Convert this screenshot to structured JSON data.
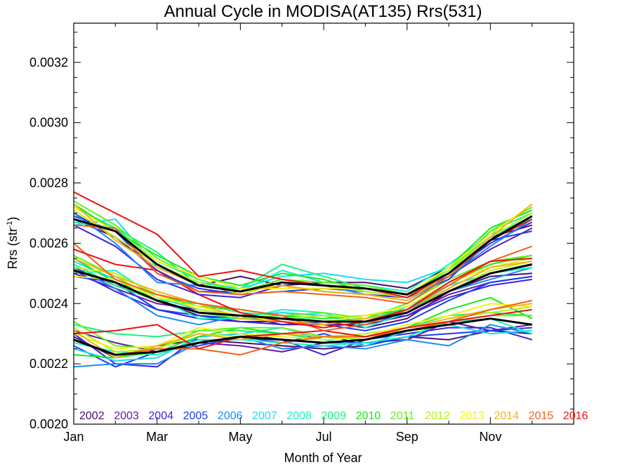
{
  "chart_data": {
    "type": "line",
    "title": "Annual Cycle in MODISA(AT135) Rrs(531)",
    "xlabel": "Month of Year",
    "ylabel_main": "Rrs (str",
    "ylabel_sup": "-1",
    "ylabel_close": ")",
    "xlim": [
      1,
      13
    ],
    "ylim": [
      0.002,
      0.00333
    ],
    "x_ticks": [
      1,
      3,
      5,
      7,
      9,
      11
    ],
    "x_tick_labels": [
      "Jan",
      "Mar",
      "May",
      "Jul",
      "Sep",
      "Nov"
    ],
    "y_ticks": [
      0.002,
      0.0022,
      0.0024,
      0.0026,
      0.0028,
      0.003,
      0.0032
    ],
    "y_tick_labels": [
      "0.0020",
      "0.0022",
      "0.0024",
      "0.0026",
      "0.0028",
      "0.0030",
      "0.0032"
    ],
    "x": [
      1,
      2,
      3,
      4,
      5,
      6,
      7,
      8,
      9,
      10,
      11,
      12
    ],
    "years": [
      "2002",
      "2003",
      "2004",
      "2005",
      "2006",
      "2007",
      "2008",
      "2009",
      "2010",
      "2011",
      "2012",
      "2013",
      "2014",
      "2015",
      "2016"
    ],
    "year_colors": [
      "#4a0f6e",
      "#6a16a8",
      "#3a22e0",
      "#1a3df2",
      "#1a8cf2",
      "#1adcf2",
      "#1af2c4",
      "#1af27a",
      "#1ae81a",
      "#62f21a",
      "#b4f21a",
      "#f2f21a",
      "#f2b41a",
      "#f2621a",
      "#ee1111"
    ],
    "series": [
      {
        "color": "#4a0f6e",
        "values": [
          0.00229,
          0.00222,
          0.00226,
          0.00228,
          0.00227,
          0.00226,
          0.00225,
          0.00226,
          0.00229,
          0.00228,
          0.00231,
          0.0023
        ]
      },
      {
        "color": "#6a16a8",
        "values": [
          0.00231,
          0.00227,
          0.00224,
          0.00227,
          0.00226,
          0.00224,
          0.00227,
          0.00227,
          0.00228,
          0.00234,
          0.00231,
          0.00233
        ]
      },
      {
        "color": "#3a22e0",
        "values": [
          0.0023,
          0.0022,
          0.00219,
          0.00229,
          0.0023,
          0.00228,
          0.00223,
          0.00228,
          0.0023,
          0.00232,
          0.00232,
          0.00228
        ]
      },
      {
        "color": "#1a3df2",
        "values": [
          0.00226,
          0.00219,
          0.00224,
          0.00226,
          0.00229,
          0.00227,
          0.0023,
          0.00226,
          0.00229,
          0.0023,
          0.00231,
          0.00232
        ]
      },
      {
        "color": "#1a8cf2",
        "values": [
          0.00219,
          0.0022,
          0.0022,
          0.00227,
          0.00229,
          0.00225,
          0.00226,
          0.00225,
          0.00228,
          0.00226,
          0.00233,
          0.0023
        ]
      },
      {
        "color": "#1adcf2",
        "values": [
          0.00225,
          0.00221,
          0.00222,
          0.00229,
          0.0023,
          0.00232,
          0.00228,
          0.00226,
          0.00231,
          0.00233,
          0.0023,
          0.00231
        ]
      },
      {
        "color": "#1af2c4",
        "values": [
          0.00227,
          0.00224,
          0.00223,
          0.00228,
          0.00228,
          0.00227,
          0.00226,
          0.00227,
          0.00229,
          0.00234,
          0.00235,
          0.0023
        ]
      },
      {
        "color": "#1af27a",
        "values": [
          0.00233,
          0.0023,
          0.00229,
          0.00231,
          0.00231,
          0.0023,
          0.00228,
          0.00229,
          0.00232,
          0.00236,
          0.00237,
          0.00236
        ]
      },
      {
        "color": "#1ae81a",
        "values": [
          0.00223,
          0.00222,
          0.00224,
          0.00229,
          0.00232,
          0.0023,
          0.00229,
          0.00229,
          0.00232,
          0.00238,
          0.00242,
          0.00235
        ]
      },
      {
        "color": "#62f21a",
        "values": [
          0.00234,
          0.00226,
          0.00225,
          0.00231,
          0.00232,
          0.00232,
          0.00229,
          0.00228,
          0.00232,
          0.00234,
          0.00236,
          0.00236
        ]
      },
      {
        "color": "#b4f21a",
        "values": [
          0.00232,
          0.00224,
          0.00225,
          0.0023,
          0.00229,
          0.0023,
          0.00229,
          0.0023,
          0.00232,
          0.00235,
          0.00237,
          0.00239
        ]
      },
      {
        "color": "#f2f21a",
        "values": [
          0.0023,
          0.00225,
          0.00226,
          0.00232,
          0.0023,
          0.00229,
          0.00228,
          0.00229,
          0.00233,
          0.00236,
          0.0024,
          0.00239
        ]
      },
      {
        "color": "#f2b41a",
        "values": [
          0.00231,
          0.00222,
          0.00226,
          0.0023,
          0.00228,
          0.0023,
          0.00229,
          0.00229,
          0.00232,
          0.00235,
          0.00238,
          0.0024
        ]
      },
      {
        "color": "#f2621a",
        "values": [
          0.00228,
          0.00223,
          0.00225,
          0.00225,
          0.00223,
          0.00227,
          0.00229,
          0.00229,
          0.00231,
          0.00234,
          0.00238,
          0.00241
        ]
      },
      {
        "color": "#ee1111",
        "values": [
          0.0023,
          0.00231,
          0.00233,
          0.00225,
          0.00229,
          0.0023,
          0.00231,
          0.00229,
          0.00232,
          0.00234,
          0.00236,
          0.00238
        ]
      },
      {
        "color": "#4a0f6e",
        "values": [
          0.00252,
          0.00246,
          0.00241,
          0.00236,
          0.00234,
          0.00234,
          0.00234,
          0.00232,
          0.00235,
          0.00244,
          0.00249,
          0.0025
        ]
      },
      {
        "color": "#6a16a8",
        "values": [
          0.0025,
          0.00245,
          0.0024,
          0.00238,
          0.00236,
          0.00233,
          0.00233,
          0.00233,
          0.00236,
          0.00243,
          0.00247,
          0.00249
        ]
      },
      {
        "color": "#3a22e0",
        "values": [
          0.00251,
          0.00244,
          0.00238,
          0.00235,
          0.00234,
          0.00233,
          0.00234,
          0.00234,
          0.00236,
          0.00242,
          0.00246,
          0.00248
        ]
      },
      {
        "color": "#1a3df2",
        "values": [
          0.00249,
          0.00247,
          0.00238,
          0.00236,
          0.00235,
          0.00235,
          0.00233,
          0.00231,
          0.00234,
          0.00241,
          0.00247,
          0.00249
        ]
      },
      {
        "color": "#1a8cf2",
        "values": [
          0.00252,
          0.00245,
          0.00236,
          0.00233,
          0.00236,
          0.00237,
          0.00236,
          0.00234,
          0.00238,
          0.00244,
          0.00248,
          0.00252
        ]
      },
      {
        "color": "#1adcf2",
        "values": [
          0.00254,
          0.00248,
          0.00242,
          0.00238,
          0.00236,
          0.00237,
          0.00236,
          0.00233,
          0.00239,
          0.00246,
          0.0025,
          0.00253
        ]
      },
      {
        "color": "#1af2c4",
        "values": [
          0.0025,
          0.00251,
          0.00242,
          0.00235,
          0.00235,
          0.00238,
          0.00237,
          0.00232,
          0.00237,
          0.00244,
          0.0025,
          0.00252
        ]
      },
      {
        "color": "#1af27a",
        "values": [
          0.00253,
          0.00246,
          0.00241,
          0.0024,
          0.00237,
          0.00236,
          0.00234,
          0.00235,
          0.00238,
          0.00245,
          0.00252,
          0.00255
        ]
      },
      {
        "color": "#1ae81a",
        "values": [
          0.00255,
          0.00247,
          0.00243,
          0.00239,
          0.00238,
          0.00236,
          0.00235,
          0.00236,
          0.00238,
          0.00247,
          0.00253,
          0.00256
        ]
      },
      {
        "color": "#62f21a",
        "values": [
          0.00256,
          0.00249,
          0.00241,
          0.00237,
          0.00235,
          0.00236,
          0.00237,
          0.00235,
          0.0024,
          0.00248,
          0.00254,
          0.00256
        ]
      },
      {
        "color": "#b4f21a",
        "values": [
          0.00252,
          0.0025,
          0.00243,
          0.00238,
          0.00236,
          0.00235,
          0.00236,
          0.00235,
          0.00237,
          0.00244,
          0.00251,
          0.00254
        ]
      },
      {
        "color": "#f2f21a",
        "values": [
          0.00249,
          0.00248,
          0.00242,
          0.00239,
          0.00236,
          0.00234,
          0.00234,
          0.00236,
          0.00239,
          0.00247,
          0.00252,
          0.00255
        ]
      },
      {
        "color": "#f2b41a",
        "values": [
          0.00255,
          0.00249,
          0.00244,
          0.0024,
          0.00235,
          0.00234,
          0.00233,
          0.00235,
          0.00237,
          0.00245,
          0.00252,
          0.00254
        ]
      },
      {
        "color": "#f2621a",
        "values": [
          0.0026,
          0.00248,
          0.00243,
          0.0024,
          0.00238,
          0.00236,
          0.00231,
          0.00233,
          0.00238,
          0.00246,
          0.00254,
          0.00259
        ]
      },
      {
        "color": "#ee1111",
        "values": [
          0.00258,
          0.00253,
          0.00251,
          0.00243,
          0.00237,
          0.00234,
          0.00232,
          0.00234,
          0.00238,
          0.00247,
          0.00254,
          0.00255
        ]
      },
      {
        "color": "#4a0f6e",
        "values": [
          0.00268,
          0.00262,
          0.00253,
          0.00246,
          0.00249,
          0.00246,
          0.00247,
          0.00247,
          0.00245,
          0.00252,
          0.00262,
          0.00266
        ]
      },
      {
        "color": "#6a16a8",
        "values": [
          0.0027,
          0.00262,
          0.00251,
          0.00244,
          0.00244,
          0.00248,
          0.00246,
          0.00245,
          0.00243,
          0.00249,
          0.00258,
          0.00265
        ]
      },
      {
        "color": "#3a22e0",
        "values": [
          0.00266,
          0.00259,
          0.00248,
          0.00243,
          0.00242,
          0.00246,
          0.00244,
          0.00243,
          0.00242,
          0.0025,
          0.0026,
          0.00267
        ]
      },
      {
        "color": "#1a3df2",
        "values": [
          0.00269,
          0.00264,
          0.0025,
          0.00245,
          0.00243,
          0.00244,
          0.00245,
          0.00244,
          0.00242,
          0.00248,
          0.00261,
          0.00264
        ]
      },
      {
        "color": "#1a8cf2",
        "values": [
          0.0027,
          0.0026,
          0.00247,
          0.00246,
          0.00244,
          0.00247,
          0.00246,
          0.00243,
          0.00241,
          0.00249,
          0.00259,
          0.00268
        ]
      },
      {
        "color": "#1adcf2",
        "values": [
          0.00266,
          0.00268,
          0.00252,
          0.00247,
          0.00245,
          0.00249,
          0.0025,
          0.00248,
          0.00247,
          0.00252,
          0.00262,
          0.00269
        ]
      },
      {
        "color": "#1af2c4",
        "values": [
          0.00267,
          0.00265,
          0.00254,
          0.00248,
          0.00244,
          0.00251,
          0.00247,
          0.00246,
          0.00244,
          0.00253,
          0.00263,
          0.00268
        ]
      },
      {
        "color": "#1af27a",
        "values": [
          0.00272,
          0.00265,
          0.00257,
          0.00246,
          0.00245,
          0.00253,
          0.00249,
          0.00245,
          0.00243,
          0.00251,
          0.00264,
          0.0027
        ]
      },
      {
        "color": "#1ae81a",
        "values": [
          0.00273,
          0.00264,
          0.00256,
          0.00249,
          0.00246,
          0.0025,
          0.00248,
          0.00244,
          0.00242,
          0.00252,
          0.00265,
          0.00271
        ]
      },
      {
        "color": "#62f21a",
        "values": [
          0.00274,
          0.00266,
          0.00255,
          0.00248,
          0.00244,
          0.00248,
          0.00247,
          0.00246,
          0.00243,
          0.0025,
          0.00264,
          0.00272
        ]
      },
      {
        "color": "#b4f21a",
        "values": [
          0.00271,
          0.00262,
          0.00253,
          0.00247,
          0.00243,
          0.00247,
          0.00246,
          0.00244,
          0.00242,
          0.00251,
          0.00262,
          0.0027
        ]
      },
      {
        "color": "#f2f21a",
        "values": [
          0.00272,
          0.00264,
          0.00254,
          0.00249,
          0.00245,
          0.00245,
          0.00245,
          0.00245,
          0.00243,
          0.00252,
          0.00263,
          0.00273
        ]
      },
      {
        "color": "#f2b41a",
        "values": [
          0.00273,
          0.00261,
          0.00252,
          0.00246,
          0.00244,
          0.00246,
          0.00244,
          0.00243,
          0.00241,
          0.0025,
          0.00262,
          0.00273
        ]
      },
      {
        "color": "#f2621a",
        "values": [
          0.00266,
          0.00265,
          0.0025,
          0.00244,
          0.00243,
          0.00244,
          0.00243,
          0.00242,
          0.0024,
          0.00249,
          0.00261,
          0.00269
        ]
      },
      {
        "color": "#ee1111",
        "values": [
          0.00277,
          0.0027,
          0.00263,
          0.00249,
          0.00251,
          0.00248,
          0.00246,
          0.00245,
          0.00242,
          0.0025,
          0.00261,
          0.00268
        ]
      },
      {
        "color": "#000000",
        "width": 3,
        "values": [
          0.00228,
          0.00223,
          0.00224,
          0.00227,
          0.00229,
          0.00228,
          0.00227,
          0.00228,
          0.00231,
          0.00233,
          0.00235,
          0.00233
        ]
      },
      {
        "color": "#000000",
        "width": 3,
        "values": [
          0.00251,
          0.00247,
          0.00241,
          0.00237,
          0.00236,
          0.00235,
          0.00234,
          0.00234,
          0.00237,
          0.00244,
          0.0025,
          0.00253
        ]
      },
      {
        "color": "#000000",
        "width": 3,
        "values": [
          0.00268,
          0.00264,
          0.00253,
          0.00246,
          0.00244,
          0.00247,
          0.00246,
          0.00245,
          0.00243,
          0.0025,
          0.00261,
          0.00269
        ]
      }
    ]
  }
}
